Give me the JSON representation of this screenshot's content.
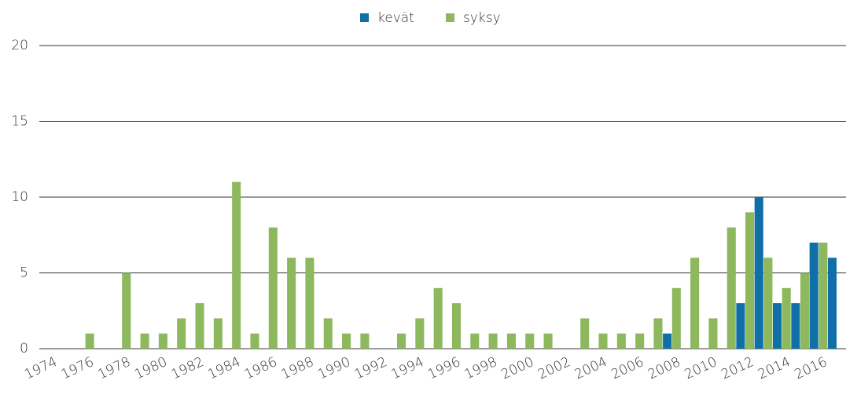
{
  "chart_data": {
    "type": "bar",
    "categories": [
      "1974",
      null,
      "1976",
      null,
      "1978",
      null,
      "1980",
      null,
      "1982",
      null,
      "1984",
      null,
      "1986",
      null,
      "1988",
      null,
      "1990",
      null,
      "1992",
      null,
      "1994",
      null,
      "1996",
      null,
      "1998",
      null,
      "2000",
      null,
      "2002",
      null,
      "2004",
      null,
      "2006",
      null,
      "2008",
      null,
      "2010",
      null,
      "2012",
      null,
      "2014",
      null,
      "2016",
      null
    ],
    "series": [
      {
        "name": "kevät",
        "color": "#0f6fa6",
        "values": [
          0,
          0,
          0,
          0,
          0,
          0,
          0,
          0,
          0,
          0,
          0,
          0,
          0,
          0,
          0,
          0,
          0,
          0,
          0,
          0,
          0,
          0,
          0,
          0,
          0,
          0,
          0,
          0,
          0,
          0,
          0,
          0,
          0,
          0,
          1,
          0,
          0,
          0,
          3,
          10,
          3,
          3,
          7,
          6
        ]
      },
      {
        "name": "syksy",
        "color": "#8db85e",
        "values": [
          0,
          0,
          1,
          0,
          5,
          1,
          1,
          2,
          3,
          2,
          11,
          1,
          8,
          6,
          6,
          2,
          1,
          1,
          0,
          1,
          2,
          4,
          3,
          1,
          1,
          1,
          1,
          1,
          0,
          2,
          1,
          1,
          1,
          2,
          4,
          6,
          2,
          8,
          9,
          6,
          4,
          5,
          7,
          0
        ]
      }
    ],
    "ylim": [
      0,
      20
    ],
    "yticks": [
      0,
      5,
      10,
      15,
      20
    ],
    "grid": true,
    "legend": "top"
  }
}
